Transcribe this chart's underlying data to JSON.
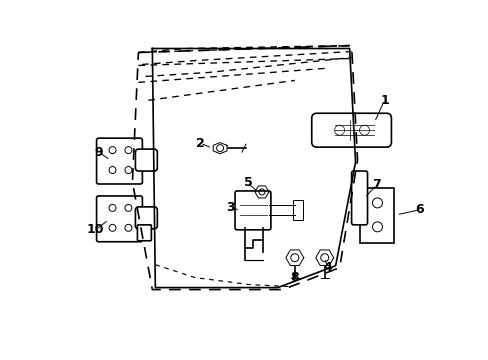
{
  "bg_color": "#ffffff",
  "line_color": "#000000",
  "figure_size": [
    4.89,
    3.6
  ],
  "dpi": 100
}
